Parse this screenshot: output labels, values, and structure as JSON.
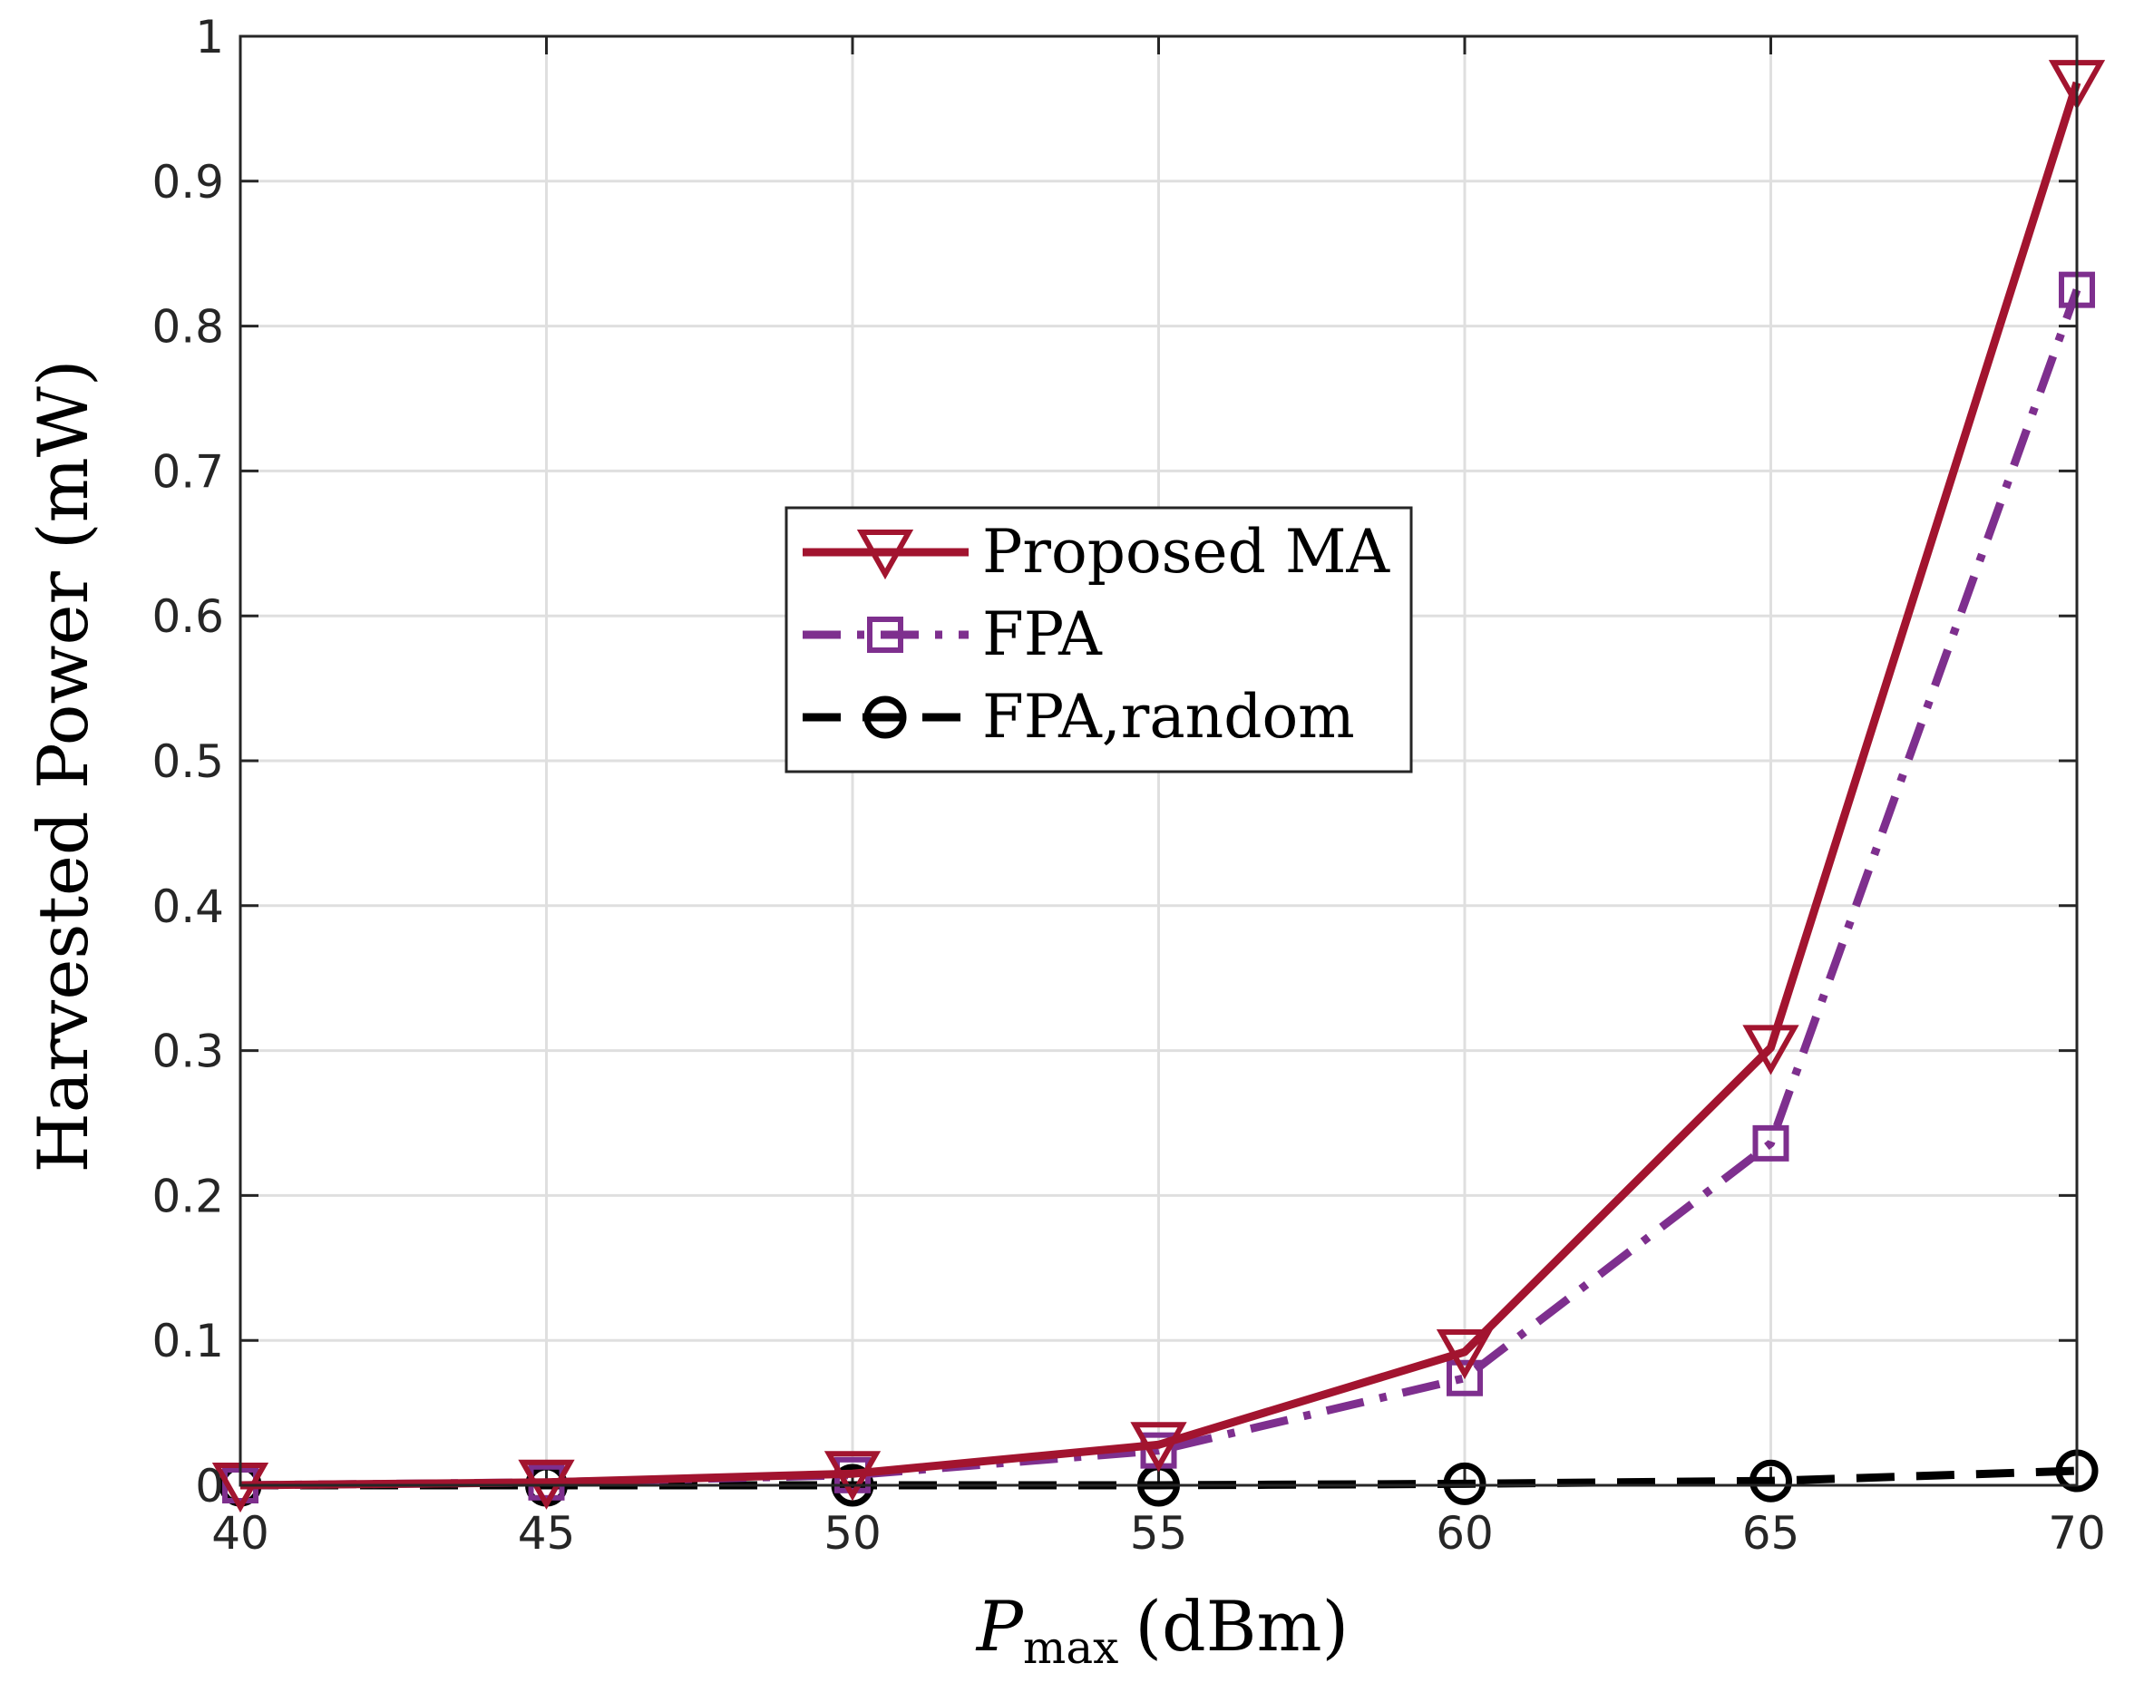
{
  "chart_data": {
    "type": "line",
    "xlabel_main": "P",
    "xlabel_sub": "max",
    "xlabel_unit": "(dBm)",
    "ylabel": "Harvested Power (mW)",
    "xlim": [
      40,
      70
    ],
    "ylim": [
      0,
      1
    ],
    "x": [
      40,
      45,
      50,
      55,
      60,
      65,
      70
    ],
    "xticks": [
      "40",
      "45",
      "50",
      "55",
      "60",
      "65",
      "70"
    ],
    "yticks": [
      "0",
      "0.1",
      "0.2",
      "0.3",
      "0.4",
      "0.5",
      "0.6",
      "0.7",
      "0.8",
      "0.9",
      "1"
    ],
    "grid": true,
    "legend_position": "center",
    "series": [
      {
        "name": "Proposed MA",
        "values": [
          0.0,
          0.002,
          0.008,
          0.028,
          0.092,
          0.302,
          0.968
        ],
        "color": "#A2142F",
        "marker": "triangle-down",
        "dash": "solid"
      },
      {
        "name": "FPA",
        "values": [
          0.0,
          0.002,
          0.007,
          0.024,
          0.074,
          0.236,
          0.825
        ],
        "color": "#7E2F8E",
        "marker": "square",
        "dash": "dashdot"
      },
      {
        "name": "FPA,random",
        "values": [
          0.0,
          0.0,
          0.0,
          0.0,
          0.001,
          0.003,
          0.01
        ],
        "color": "#000000",
        "marker": "circle",
        "dash": "dashed"
      }
    ]
  }
}
